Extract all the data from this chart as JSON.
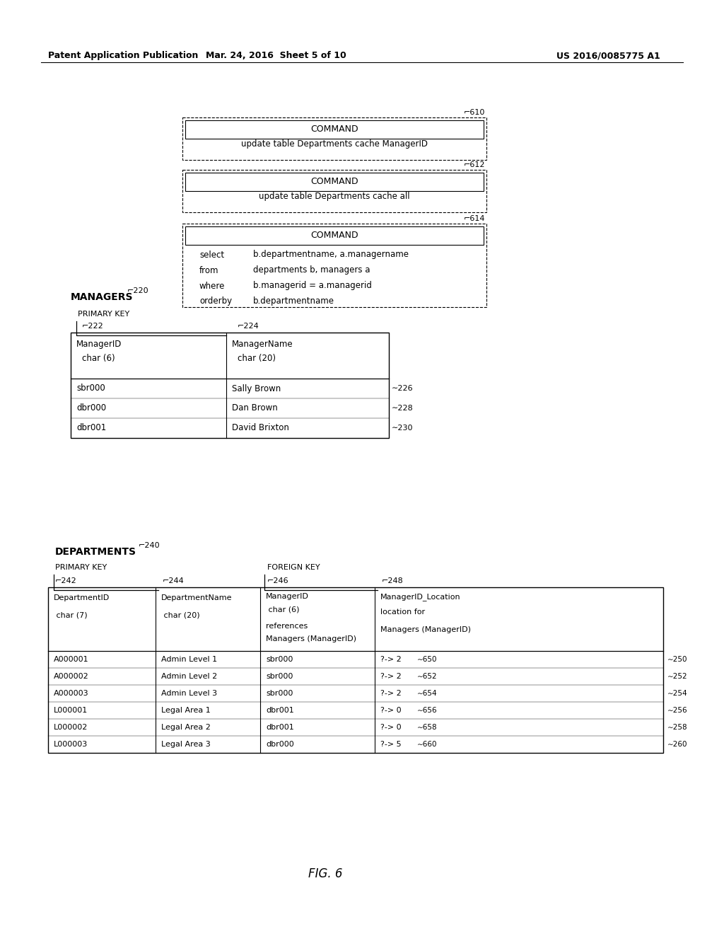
{
  "header_left": "Patent Application Publication",
  "header_mid": "Mar. 24, 2016  Sheet 5 of 10",
  "header_right": "US 2016/0085775 A1",
  "fig_label": "FIG. 6",
  "bg_color": "#ffffff",
  "cmd_box_610": {
    "label": "610",
    "title": "COMMAND",
    "line": "update table Departments cache ManagerID"
  },
  "cmd_box_612": {
    "label": "612",
    "title": "COMMAND",
    "line": "update table Departments cache all"
  },
  "cmd_box_614": {
    "label": "614",
    "title": "COMMAND",
    "sql": [
      [
        "select",
        "b.departmentname, a.managername"
      ],
      [
        "from",
        "departments b, managers a"
      ],
      [
        "where",
        "b.managerid = a.managerid"
      ],
      [
        "orderby",
        "b.departmentname"
      ]
    ]
  },
  "managers_label": "220",
  "managers_title": "MANAGERS",
  "managers_pk_label": "PRIMARY KEY",
  "managers_col_labels": [
    "222",
    "224"
  ],
  "managers_col_headers": [
    [
      "ManagerID",
      " char (6)"
    ],
    [
      "ManagerName",
      " char (20)"
    ]
  ],
  "managers_rows": [
    [
      "sbr000",
      "Sally Brown",
      "226"
    ],
    [
      "dbr000",
      "Dan Brown",
      "228"
    ],
    [
      "dbr001",
      "David Brixton",
      "230"
    ]
  ],
  "departments_label": "240",
  "departments_title": "DEPARTMENTS",
  "departments_pk_label": "PRIMARY KEY",
  "departments_fk_label": "FOREIGN KEY",
  "departments_col_labels": [
    "242",
    "244",
    "246",
    "248"
  ],
  "departments_col_headers": [
    [
      "DepartmentID",
      " char (7)",
      "",
      ""
    ],
    [
      "DepartmentName",
      " char (20)",
      "",
      ""
    ],
    [
      "ManagerID",
      " char (6)",
      "references",
      "Managers (ManagerID)"
    ],
    [
      "ManagerID_Location",
      "",
      "location for",
      "Managers (ManagerID)"
    ]
  ],
  "departments_rows": [
    [
      "A000001",
      "Admin Level 1",
      "sbr000",
      "?-> 2",
      "650",
      "250"
    ],
    [
      "A000002",
      "Admin Level 2",
      "sbr000",
      "?-> 2",
      "652",
      "252"
    ],
    [
      "A000003",
      "Admin Level 3",
      "sbr000",
      "?-> 2",
      "654",
      "254"
    ],
    [
      "L000001",
      "Legal Area 1",
      "dbr001",
      "?-> 0",
      "656",
      "256"
    ],
    [
      "L000002",
      "Legal Area 2",
      "dbr001",
      "?-> 0",
      "658",
      "258"
    ],
    [
      "L000003",
      "Legal Area 3",
      "dbr000",
      "?-> 5",
      "660",
      "260"
    ]
  ]
}
